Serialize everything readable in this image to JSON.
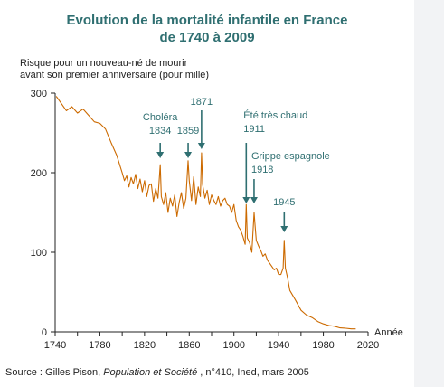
{
  "chart_data": {
    "type": "line",
    "title": "Evolution de la mortalité infantile en France",
    "subtitle": "de 1740 à 2009",
    "ylabel_line1": "Risque pour un nouveau-né de mourir",
    "ylabel_line2": "avant son premier anniversaire (pour mille)",
    "xlabel": "Année",
    "xlim": [
      1740,
      2020
    ],
    "ylim": [
      0,
      300
    ],
    "x_ticks": [
      "1740",
      "1760",
      "1780",
      "1800",
      "1820",
      "1840",
      "1860",
      "1880",
      "1900",
      "1920",
      "1940",
      "1960",
      "1980",
      "2000",
      "2020"
    ],
    "x_tick_labels": [
      "1740",
      "1780",
      "1820",
      "1860",
      "1900",
      "1940",
      "1980",
      "2020"
    ],
    "y_ticks": [
      "0",
      "100",
      "200",
      "300"
    ],
    "grid": false,
    "line_color": "#cc6a00",
    "series": [
      {
        "x": [
          1741,
          1745,
          1750,
          1755,
          1760,
          1765,
          1770,
          1775,
          1780,
          1785,
          1790,
          1795,
          1800,
          1802,
          1804,
          1806,
          1808,
          1810,
          1812,
          1814,
          1816,
          1818,
          1820,
          1822,
          1824,
          1826,
          1828,
          1830,
          1832,
          1834,
          1835,
          1837,
          1839,
          1841,
          1843,
          1845,
          1847,
          1849,
          1851,
          1853,
          1855,
          1857,
          1859,
          1860,
          1862,
          1864,
          1866,
          1868,
          1870,
          1871,
          1872,
          1874,
          1876,
          1878,
          1880,
          1882,
          1884,
          1886,
          1888,
          1890,
          1892,
          1894,
          1896,
          1898,
          1900,
          1902,
          1904,
          1906,
          1908,
          1910,
          1911,
          1912,
          1914,
          1916,
          1918,
          1919,
          1920,
          1922,
          1924,
          1926,
          1928,
          1930,
          1932,
          1934,
          1936,
          1938,
          1940,
          1942,
          1944,
          1945,
          1946,
          1948,
          1950,
          1955,
          1960,
          1965,
          1970,
          1975,
          1980,
          1985,
          1990,
          1995,
          2000,
          2005,
          2009
        ],
        "y": [
          296,
          288,
          278,
          283,
          275,
          280,
          272,
          264,
          262,
          255,
          238,
          222,
          200,
          190,
          196,
          182,
          194,
          186,
          198,
          180,
          192,
          176,
          190,
          170,
          184,
          186,
          164,
          180,
          168,
          210,
          170,
          160,
          175,
          150,
          168,
          158,
          172,
          145,
          163,
          175,
          155,
          168,
          215,
          190,
          165,
          195,
          160,
          182,
          170,
          225,
          185,
          168,
          178,
          160,
          172,
          165,
          160,
          170,
          158,
          165,
          168,
          160,
          158,
          150,
          160,
          140,
          132,
          128,
          120,
          110,
          160,
          118,
          112,
          100,
          150,
          132,
          115,
          108,
          102,
          95,
          98,
          90,
          86,
          82,
          78,
          80,
          72,
          72,
          80,
          115,
          80,
          68,
          52,
          40,
          27,
          21,
          18,
          13,
          10,
          8,
          7,
          5,
          4.5,
          3.8,
          3.8
        ]
      }
    ],
    "annotations": [
      {
        "lines": [
          "Choléra",
          "1834"
        ],
        "x": 1834,
        "y": 210
      },
      {
        "lines": [
          "1859"
        ],
        "x": 1859,
        "y": 215
      },
      {
        "lines": [
          "1871"
        ],
        "x": 1871,
        "y": 225
      },
      {
        "lines": [
          "Été très chaud",
          "1911"
        ],
        "x": 1911,
        "y": 160
      },
      {
        "lines": [
          "Grippe espagnole",
          "1918"
        ],
        "x": 1918,
        "y": 150
      },
      {
        "lines": [
          "1945"
        ],
        "x": 1945,
        "y": 115
      }
    ],
    "source": {
      "prefix": "Source : Gilles Pison,",
      "italic": "Population et Société",
      "suffix": " , n°410, Ined, mars 2005"
    }
  }
}
